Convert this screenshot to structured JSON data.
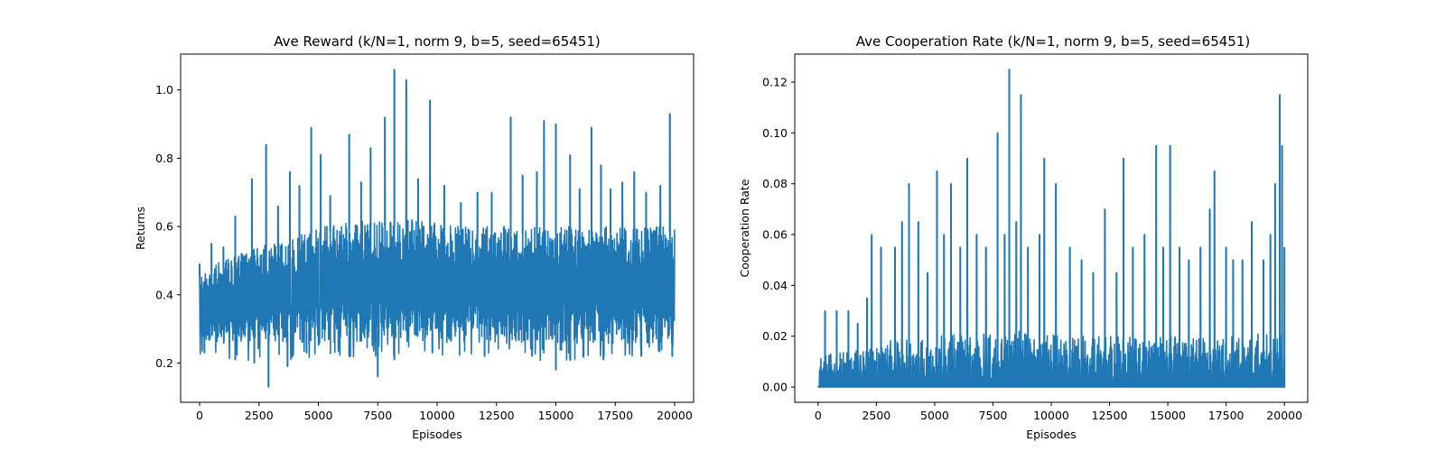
{
  "chart_data": [
    {
      "type": "line",
      "title": "Ave Reward (k/N=1, norm 9, b=5, seed=65451)",
      "xlabel": "Episodes",
      "ylabel": "Returns",
      "xlim": [
        -800,
        20800
      ],
      "ylim": [
        0.085,
        1.105
      ],
      "xticks": [
        0,
        2500,
        5000,
        7500,
        10000,
        12500,
        15000,
        17500,
        20000
      ],
      "xtick_labels": [
        "0",
        "2500",
        "5000",
        "7500",
        "10000",
        "12500",
        "15000",
        "17500",
        "20000"
      ],
      "yticks": [
        0.2,
        0.4,
        0.6,
        0.8,
        1.0
      ],
      "ytick_labels": [
        "0.2",
        "0.4",
        "0.6",
        "0.8",
        "1.0"
      ],
      "grid": false,
      "legend": "none",
      "line_color": "#1f77b4",
      "series": [
        {
          "x_range": [
            0,
            20000
          ],
          "envelope": {
            "x": [
              0,
              1000,
              2000,
              3000,
              4000,
              5000,
              6000,
              7000,
              8000,
              9000,
              10000,
              11000,
              12000,
              13000,
              14000,
              15000,
              16000,
              17000,
              18000,
              19000,
              20000
            ],
            "lower": [
              0.27,
              0.26,
              0.26,
              0.26,
              0.26,
              0.26,
              0.26,
              0.26,
              0.26,
              0.26,
              0.26,
              0.26,
              0.26,
              0.26,
              0.26,
              0.26,
              0.26,
              0.26,
              0.26,
              0.26,
              0.26
            ],
            "upper": [
              0.47,
              0.5,
              0.53,
              0.55,
              0.57,
              0.6,
              0.61,
              0.62,
              0.62,
              0.62,
              0.61,
              0.6,
              0.6,
              0.6,
              0.6,
              0.6,
              0.6,
              0.6,
              0.6,
              0.6,
              0.6
            ],
            "min_extreme": [
              0.22,
              0.21,
              0.2,
              0.21,
              0.21,
              0.22,
              0.22,
              0.21,
              0.21,
              0.22,
              0.22,
              0.22,
              0.22,
              0.22,
              0.21,
              0.2,
              0.21,
              0.21,
              0.22,
              0.22,
              0.22
            ]
          },
          "peaks": [
            {
              "x": 0,
              "y": 0.49
            },
            {
              "x": 500,
              "y": 0.55
            },
            {
              "x": 1000,
              "y": 0.54
            },
            {
              "x": 1500,
              "y": 0.63
            },
            {
              "x": 2200,
              "y": 0.74
            },
            {
              "x": 2800,
              "y": 0.84
            },
            {
              "x": 3300,
              "y": 0.66
            },
            {
              "x": 3800,
              "y": 0.76
            },
            {
              "x": 4200,
              "y": 0.72
            },
            {
              "x": 4700,
              "y": 0.89
            },
            {
              "x": 5100,
              "y": 0.81
            },
            {
              "x": 5500,
              "y": 0.69
            },
            {
              "x": 6300,
              "y": 0.87
            },
            {
              "x": 6800,
              "y": 0.73
            },
            {
              "x": 7200,
              "y": 0.83
            },
            {
              "x": 7800,
              "y": 0.92
            },
            {
              "x": 8200,
              "y": 1.06
            },
            {
              "x": 8700,
              "y": 1.03
            },
            {
              "x": 9200,
              "y": 0.74
            },
            {
              "x": 9700,
              "y": 0.97
            },
            {
              "x": 10300,
              "y": 0.72
            },
            {
              "x": 11000,
              "y": 0.67
            },
            {
              "x": 11700,
              "y": 0.7
            },
            {
              "x": 12300,
              "y": 0.7
            },
            {
              "x": 13100,
              "y": 0.92
            },
            {
              "x": 13600,
              "y": 0.75
            },
            {
              "x": 14200,
              "y": 0.76
            },
            {
              "x": 14500,
              "y": 0.91
            },
            {
              "x": 15000,
              "y": 0.9
            },
            {
              "x": 15600,
              "y": 0.81
            },
            {
              "x": 16000,
              "y": 0.71
            },
            {
              "x": 16500,
              "y": 0.89
            },
            {
              "x": 16900,
              "y": 0.78
            },
            {
              "x": 17300,
              "y": 0.71
            },
            {
              "x": 17800,
              "y": 0.73
            },
            {
              "x": 18300,
              "y": 0.76
            },
            {
              "x": 18800,
              "y": 0.7
            },
            {
              "x": 19400,
              "y": 0.72
            },
            {
              "x": 19800,
              "y": 0.93
            }
          ],
          "dips": [
            {
              "x": 200,
              "y": 0.23
            },
            {
              "x": 1500,
              "y": 0.21
            },
            {
              "x": 2300,
              "y": 0.2
            },
            {
              "x": 2900,
              "y": 0.13
            },
            {
              "x": 3700,
              "y": 0.19
            },
            {
              "x": 4500,
              "y": 0.23
            },
            {
              "x": 6300,
              "y": 0.22
            },
            {
              "x": 7500,
              "y": 0.16
            },
            {
              "x": 8200,
              "y": 0.21
            },
            {
              "x": 9800,
              "y": 0.23
            },
            {
              "x": 12000,
              "y": 0.22
            },
            {
              "x": 14000,
              "y": 0.22
            },
            {
              "x": 15000,
              "y": 0.18
            },
            {
              "x": 15600,
              "y": 0.21
            },
            {
              "x": 17000,
              "y": 0.21
            },
            {
              "x": 18600,
              "y": 0.22
            },
            {
              "x": 19900,
              "y": 0.22
            }
          ]
        }
      ]
    },
    {
      "type": "line",
      "title": "Ave Cooperation Rate (k/N=1, norm 9, b=5, seed=65451)",
      "xlabel": "Episodes",
      "ylabel": "Cooperation Rate",
      "xlim": [
        -1000,
        21000
      ],
      "ylim": [
        -0.006,
        0.131
      ],
      "xticks": [
        0,
        2500,
        5000,
        7500,
        10000,
        12500,
        15000,
        17500,
        20000
      ],
      "xtick_labels": [
        "0",
        "2500",
        "5000",
        "7500",
        "10000",
        "12500",
        "15000",
        "17500",
        "20000"
      ],
      "yticks": [
        0.0,
        0.02,
        0.04,
        0.06,
        0.08,
        0.1,
        0.12
      ],
      "ytick_labels": [
        "0.00",
        "0.02",
        "0.04",
        "0.06",
        "0.08",
        "0.10",
        "0.12"
      ],
      "grid": false,
      "legend": "none",
      "line_color": "#1f77b4",
      "series": [
        {
          "x_range": [
            0,
            20000
          ],
          "envelope": {
            "x": [
              0,
              1000,
              2000,
              3000,
              4000,
              5000,
              6000,
              7000,
              8000,
              9000,
              10000,
              11000,
              12000,
              13000,
              14000,
              15000,
              16000,
              17000,
              18000,
              19000,
              20000
            ],
            "lower": [
              0,
              0,
              0,
              0,
              0,
              0,
              0,
              0,
              0,
              0,
              0,
              0,
              0,
              0,
              0,
              0,
              0,
              0,
              0,
              0,
              0
            ],
            "upper": [
              0.012,
              0.014,
              0.016,
              0.018,
              0.02,
              0.02,
              0.021,
              0.022,
              0.022,
              0.022,
              0.021,
              0.02,
              0.02,
              0.02,
              0.02,
              0.02,
              0.02,
              0.02,
              0.02,
              0.021,
              0.021
            ]
          },
          "peaks": [
            {
              "x": 300,
              "y": 0.03
            },
            {
              "x": 800,
              "y": 0.03
            },
            {
              "x": 1300,
              "y": 0.03
            },
            {
              "x": 1700,
              "y": 0.025
            },
            {
              "x": 2100,
              "y": 0.035
            },
            {
              "x": 2300,
              "y": 0.06
            },
            {
              "x": 2700,
              "y": 0.055
            },
            {
              "x": 3300,
              "y": 0.055
            },
            {
              "x": 3600,
              "y": 0.065
            },
            {
              "x": 3900,
              "y": 0.08
            },
            {
              "x": 4300,
              "y": 0.065
            },
            {
              "x": 4700,
              "y": 0.045
            },
            {
              "x": 5100,
              "y": 0.085
            },
            {
              "x": 5400,
              "y": 0.06
            },
            {
              "x": 5700,
              "y": 0.08
            },
            {
              "x": 6100,
              "y": 0.055
            },
            {
              "x": 6400,
              "y": 0.09
            },
            {
              "x": 6800,
              "y": 0.06
            },
            {
              "x": 7200,
              "y": 0.055
            },
            {
              "x": 7700,
              "y": 0.1
            },
            {
              "x": 8000,
              "y": 0.06
            },
            {
              "x": 8200,
              "y": 0.125
            },
            {
              "x": 8500,
              "y": 0.065
            },
            {
              "x": 8700,
              "y": 0.115
            },
            {
              "x": 9000,
              "y": 0.055
            },
            {
              "x": 9500,
              "y": 0.06
            },
            {
              "x": 9700,
              "y": 0.09
            },
            {
              "x": 10200,
              "y": 0.08
            },
            {
              "x": 10800,
              "y": 0.055
            },
            {
              "x": 11300,
              "y": 0.05
            },
            {
              "x": 11800,
              "y": 0.045
            },
            {
              "x": 12300,
              "y": 0.07
            },
            {
              "x": 12800,
              "y": 0.045
            },
            {
              "x": 13100,
              "y": 0.09
            },
            {
              "x": 13500,
              "y": 0.055
            },
            {
              "x": 14000,
              "y": 0.06
            },
            {
              "x": 14500,
              "y": 0.095
            },
            {
              "x": 14800,
              "y": 0.055
            },
            {
              "x": 15100,
              "y": 0.095
            },
            {
              "x": 15500,
              "y": 0.055
            },
            {
              "x": 15900,
              "y": 0.05
            },
            {
              "x": 16400,
              "y": 0.055
            },
            {
              "x": 16800,
              "y": 0.07
            },
            {
              "x": 17000,
              "y": 0.085
            },
            {
              "x": 17500,
              "y": 0.055
            },
            {
              "x": 17800,
              "y": 0.05
            },
            {
              "x": 18200,
              "y": 0.05
            },
            {
              "x": 18600,
              "y": 0.065
            },
            {
              "x": 19100,
              "y": 0.05
            },
            {
              "x": 19400,
              "y": 0.06
            },
            {
              "x": 19600,
              "y": 0.08
            },
            {
              "x": 19800,
              "y": 0.115
            },
            {
              "x": 19900,
              "y": 0.095
            },
            {
              "x": 20000,
              "y": 0.055
            }
          ]
        }
      ]
    }
  ]
}
